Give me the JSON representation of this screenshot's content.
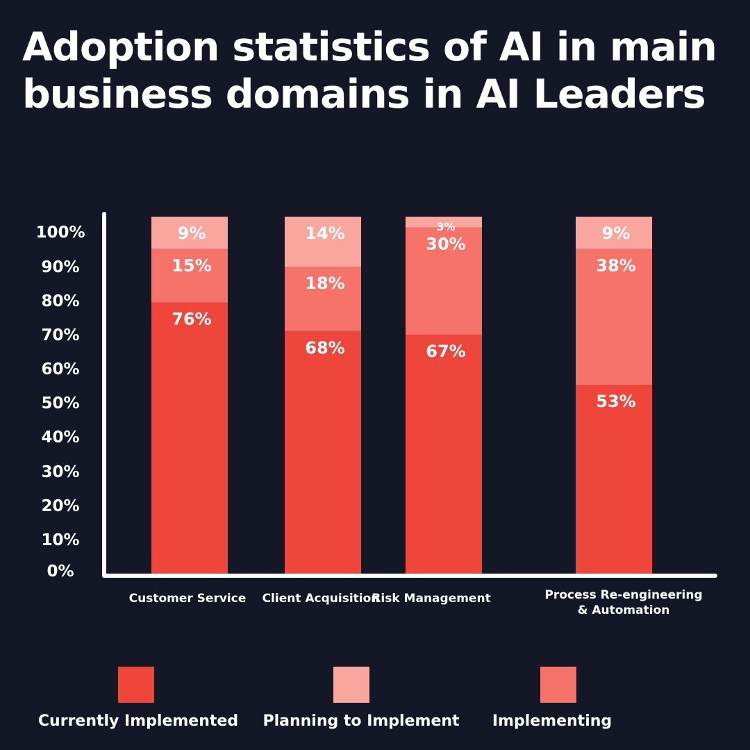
{
  "title": "Adoption statistics of AI in main business domains in AI Leaders",
  "colors": {
    "background": "#131726",
    "currently_implemented": "#ef463b",
    "implementing": "#f6736a",
    "planning_to_implement": "#f9a69f",
    "axis": "#ffffff",
    "text": "#ffffff"
  },
  "chart_data": {
    "type": "bar",
    "stacked": true,
    "title": "Adoption statistics of AI in main business domains in AI Leaders",
    "xlabel": "",
    "ylabel": "",
    "ylim": [
      0,
      100
    ],
    "y_ticks": [
      "0%",
      "10%",
      "20%",
      "30%",
      "40%",
      "50%",
      "60%",
      "70%",
      "80%",
      "90%",
      "100%"
    ],
    "grid": false,
    "legend_position": "bottom",
    "categories": [
      "Customer Service",
      "Client Acquisition",
      "Risk Management",
      "Process Re-engineering & Automation"
    ],
    "category_lines": [
      [
        "Customer Service"
      ],
      [
        "Client Acquisition"
      ],
      [
        "Risk Management"
      ],
      [
        "Process Re-engineering",
        "& Automation"
      ]
    ],
    "series": [
      {
        "name": "Currently Implemented",
        "color": "#ef463b",
        "values": [
          76,
          68,
          67,
          53
        ],
        "labels": [
          "76%",
          "68%",
          "67%",
          "53%"
        ]
      },
      {
        "name": "Implementing",
        "color": "#f6736a",
        "values": [
          15,
          18,
          30,
          38
        ],
        "labels": [
          "15%",
          "18%",
          "30%",
          "38%"
        ]
      },
      {
        "name": "Planning to Implement",
        "color": "#f9a69f",
        "values": [
          9,
          14,
          3,
          9
        ],
        "labels": [
          "9%",
          "14%",
          "3%",
          "9%"
        ]
      }
    ]
  },
  "legend": {
    "items": [
      {
        "label": "Currently Implemented",
        "color": "#ef463b"
      },
      {
        "label": "Planning to Implement",
        "color": "#f9a69f"
      },
      {
        "label": "Implementing",
        "color": "#f6736a"
      }
    ]
  }
}
